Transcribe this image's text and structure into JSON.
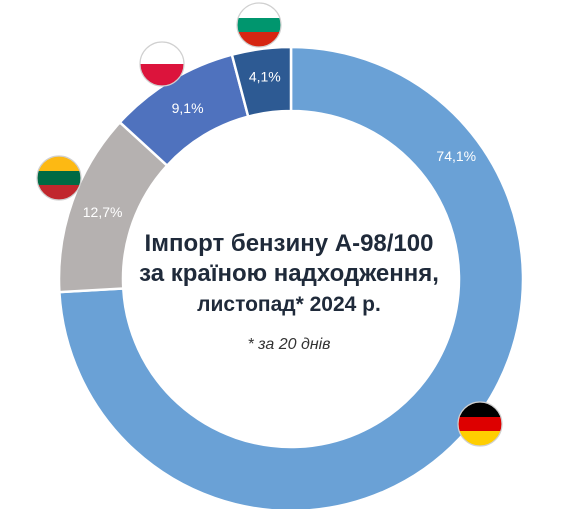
{
  "chart_data": {
    "type": "pie",
    "title_lines": [
      "Імпорт бензину А-98/100",
      "за країною надходження,",
      "листопад* 2024 р."
    ],
    "note": "* за 20 днів",
    "slices": [
      {
        "label": "74,1%",
        "value": 74.1,
        "color": "#6aa1d6",
        "flag": "germany-flag-icon"
      },
      {
        "label": "12,7%",
        "value": 12.7,
        "color": "#b5b1b0",
        "flag": "lithuania-flag-icon"
      },
      {
        "label": "9,1%",
        "value": 9.1,
        "color": "#4f72be",
        "flag": "poland-flag-icon"
      },
      {
        "label": "4,1%",
        "value": 4.1,
        "color": "#2d5a93",
        "flag": "bulgaria-flag-icon"
      }
    ]
  }
}
